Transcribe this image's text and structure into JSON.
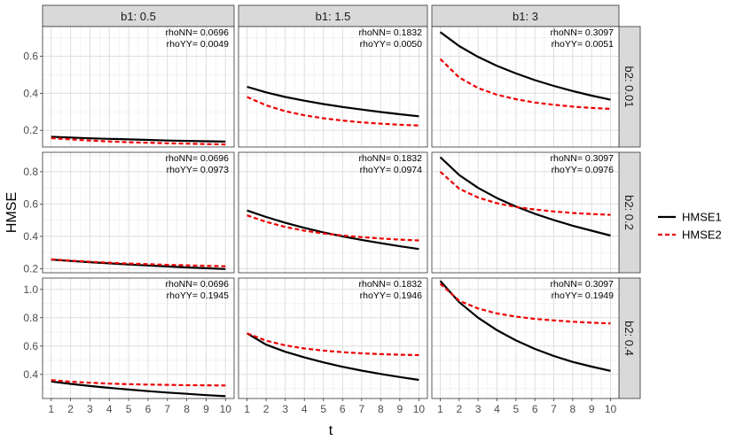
{
  "chart_data": {
    "type": "line",
    "xlabel": "t",
    "ylabel": "HMSE",
    "x": [
      1,
      2,
      3,
      4,
      5,
      6,
      7,
      8,
      9,
      10
    ],
    "col_facets": [
      {
        "label": "b1: 0.5"
      },
      {
        "label": "b1: 1.5"
      },
      {
        "label": "b1: 3"
      }
    ],
    "row_facets": [
      {
        "label": "b2: 0.01",
        "ylim": [
          0.11,
          0.76
        ],
        "yticks": [
          0.2,
          0.4,
          0.6
        ],
        "ytick_labels": [
          "0.2",
          "0.4",
          "0.6"
        ]
      },
      {
        "label": "b2: 0.2",
        "ylim": [
          0.175,
          0.92
        ],
        "yticks": [
          0.2,
          0.4,
          0.6,
          0.8
        ],
        "ytick_labels": [
          "0.2",
          "0.4",
          "0.6",
          "0.8"
        ]
      },
      {
        "label": "b2: 0.4",
        "ylim": [
          0.23,
          1.08
        ],
        "yticks": [
          0.4,
          0.6,
          0.8,
          1.0
        ],
        "ytick_labels": [
          "0.4",
          "0.6",
          "0.8",
          "1.0"
        ]
      }
    ],
    "xticks": [
      "1",
      "2",
      "3",
      "4",
      "5",
      "6",
      "7",
      "8",
      "9",
      "10"
    ],
    "legend": [
      {
        "name": "HMSE1",
        "color": "#000000",
        "dash": "solid"
      },
      {
        "name": "HMSE2",
        "color": "#ee0000",
        "dash": "dashed"
      }
    ],
    "panels": [
      {
        "row": 0,
        "col": 0,
        "annot": [
          "rhoNN= 0.0696",
          "rhoYY= 0.0049"
        ],
        "series": [
          {
            "name": "HMSE1",
            "values": [
              0.165,
              0.161,
              0.157,
              0.154,
              0.151,
              0.148,
              0.145,
              0.143,
              0.141,
              0.139
            ]
          },
          {
            "name": "HMSE2",
            "values": [
              0.158,
              0.151,
              0.145,
              0.14,
              0.136,
              0.133,
              0.13,
              0.128,
              0.126,
              0.124
            ]
          }
        ]
      },
      {
        "row": 0,
        "col": 1,
        "annot": [
          "rhoNN= 0.1832",
          "rhoYY= 0.0050"
        ],
        "series": [
          {
            "name": "HMSE1",
            "values": [
              0.435,
              0.405,
              0.38,
              0.36,
              0.342,
              0.326,
              0.312,
              0.299,
              0.287,
              0.276
            ]
          },
          {
            "name": "HMSE2",
            "values": [
              0.38,
              0.335,
              0.303,
              0.281,
              0.265,
              0.253,
              0.243,
              0.236,
              0.23,
              0.226
            ]
          }
        ]
      },
      {
        "row": 0,
        "col": 2,
        "annot": [
          "rhoNN= 0.3097",
          "rhoYY= 0.0051"
        ],
        "series": [
          {
            "name": "HMSE1",
            "values": [
              0.73,
              0.655,
              0.596,
              0.548,
              0.507,
              0.471,
              0.44,
              0.412,
              0.387,
              0.365
            ]
          },
          {
            "name": "HMSE2",
            "values": [
              0.585,
              0.485,
              0.428,
              0.392,
              0.368,
              0.35,
              0.338,
              0.328,
              0.321,
              0.316
            ]
          }
        ]
      },
      {
        "row": 1,
        "col": 0,
        "annot": [
          "rhoNN= 0.0696",
          "rhoYY= 0.0973"
        ],
        "series": [
          {
            "name": "HMSE1",
            "values": [
              0.256,
              0.248,
              0.24,
              0.233,
              0.226,
              0.22,
              0.214,
              0.208,
              0.203,
              0.198
            ]
          },
          {
            "name": "HMSE2",
            "values": [
              0.258,
              0.25,
              0.243,
              0.237,
              0.232,
              0.228,
              0.224,
              0.221,
              0.218,
              0.215
            ]
          }
        ]
      },
      {
        "row": 1,
        "col": 1,
        "annot": [
          "rhoNN= 0.1832",
          "rhoYY= 0.0974"
        ],
        "series": [
          {
            "name": "HMSE1",
            "values": [
              0.56,
              0.52,
              0.484,
              0.453,
              0.425,
              0.4,
              0.378,
              0.358,
              0.339,
              0.322
            ]
          },
          {
            "name": "HMSE2",
            "values": [
              0.53,
              0.49,
              0.458,
              0.435,
              0.418,
              0.405,
              0.395,
              0.387,
              0.38,
              0.375
            ]
          }
        ]
      },
      {
        "row": 1,
        "col": 2,
        "annot": [
          "rhoNN= 0.3097",
          "rhoYY= 0.0976"
        ],
        "series": [
          {
            "name": "HMSE1",
            "values": [
              0.89,
              0.78,
              0.7,
              0.637,
              0.585,
              0.54,
              0.501,
              0.466,
              0.435,
              0.405
            ]
          },
          {
            "name": "HMSE2",
            "values": [
              0.8,
              0.695,
              0.64,
              0.605,
              0.582,
              0.566,
              0.554,
              0.545,
              0.538,
              0.533
            ]
          }
        ]
      },
      {
        "row": 2,
        "col": 0,
        "annot": [
          "rhoNN= 0.0696",
          "rhoYY= 0.1945"
        ],
        "series": [
          {
            "name": "HMSE1",
            "values": [
              0.35,
              0.333,
              0.318,
              0.305,
              0.293,
              0.282,
              0.272,
              0.263,
              0.254,
              0.246
            ]
          },
          {
            "name": "HMSE2",
            "values": [
              0.36,
              0.349,
              0.341,
              0.335,
              0.331,
              0.328,
              0.326,
              0.324,
              0.323,
              0.322
            ]
          }
        ]
      },
      {
        "row": 2,
        "col": 1,
        "annot": [
          "rhoNN= 0.1832",
          "rhoYY= 0.1946"
        ],
        "series": [
          {
            "name": "HMSE1",
            "values": [
              0.69,
              0.61,
              0.56,
              0.52,
              0.485,
              0.454,
              0.427,
              0.403,
              0.381,
              0.361
            ]
          },
          {
            "name": "HMSE2",
            "values": [
              0.69,
              0.638,
              0.605,
              0.583,
              0.568,
              0.557,
              0.549,
              0.543,
              0.539,
              0.536
            ]
          }
        ]
      },
      {
        "row": 2,
        "col": 2,
        "annot": [
          "rhoNN= 0.3097",
          "rhoYY= 0.1949"
        ],
        "series": [
          {
            "name": "HMSE1",
            "values": [
              1.06,
              0.91,
              0.8,
              0.712,
              0.64,
              0.58,
              0.53,
              0.488,
              0.455,
              0.425
            ]
          },
          {
            "name": "HMSE2",
            "values": [
              1.04,
              0.92,
              0.865,
              0.83,
              0.808,
              0.792,
              0.781,
              0.772,
              0.765,
              0.76
            ]
          }
        ]
      }
    ]
  }
}
